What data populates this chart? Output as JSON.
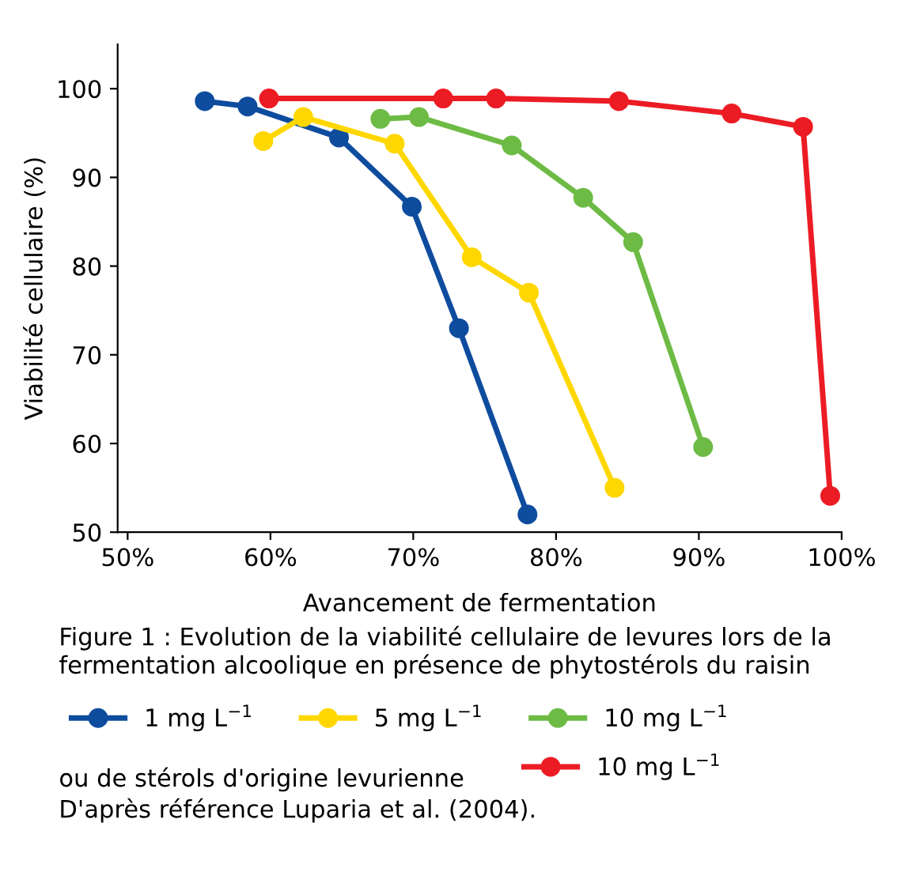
{
  "chart_data": {
    "type": "line",
    "xlabel": "Avancement de fermentation",
    "ylabel": "Viabilité cellulaire (%)",
    "xlim": [
      49.3,
      100
    ],
    "ylim": [
      50,
      105
    ],
    "xticks": [
      {
        "value": 50,
        "label": "50%"
      },
      {
        "value": 60,
        "label": "60%"
      },
      {
        "value": 70,
        "label": "70%"
      },
      {
        "value": 80,
        "label": "80%"
      },
      {
        "value": 90,
        "label": "90%"
      },
      {
        "value": 100,
        "label": "100%"
      }
    ],
    "yticks": [
      50,
      60,
      70,
      80,
      90,
      100
    ],
    "grid": false,
    "legend": "bottom",
    "marker": "circle",
    "line_style": "solid",
    "series": [
      {
        "name": "1 mg L$^{−1}$",
        "color": "#0e4c9e",
        "x": [
          55.4,
          58.4,
          64.8,
          69.9,
          73.2,
          78.0
        ],
        "values": [
          98.6,
          98.0,
          94.5,
          86.7,
          73.0,
          52.0
        ]
      },
      {
        "name": "5 mg L$^{−1}$",
        "color": "#ffd700",
        "x": [
          59.5,
          62.3,
          68.7,
          74.1,
          78.1,
          84.1
        ],
        "values": [
          94.1,
          96.8,
          93.8,
          81.0,
          77.0,
          55.0
        ]
      },
      {
        "name": "10 mg L$^{−1}$",
        "color": "#6dbb45",
        "x": [
          67.7,
          70.4,
          76.9,
          81.9,
          85.4,
          90.3
        ],
        "values": [
          96.6,
          96.8,
          93.6,
          87.7,
          82.7,
          59.6
        ]
      },
      {
        "name": "10 mg L$^{−1}$",
        "color": "#ec1c24",
        "x": [
          59.9,
          72.1,
          75.8,
          84.4,
          92.3,
          97.3,
          99.2
        ],
        "values": [
          98.9,
          98.9,
          98.9,
          98.6,
          97.2,
          95.7,
          54.1
        ]
      }
    ],
    "annotations": [
      "Figure 1 : Evolution de la viabilité cellulaire de levures lors de la fermentation alcoolique en présence de phytostérols du raisin",
      "ou de stérols d'origine levurienne",
      "D'après référence Luparia et al. (2004)."
    ]
  }
}
